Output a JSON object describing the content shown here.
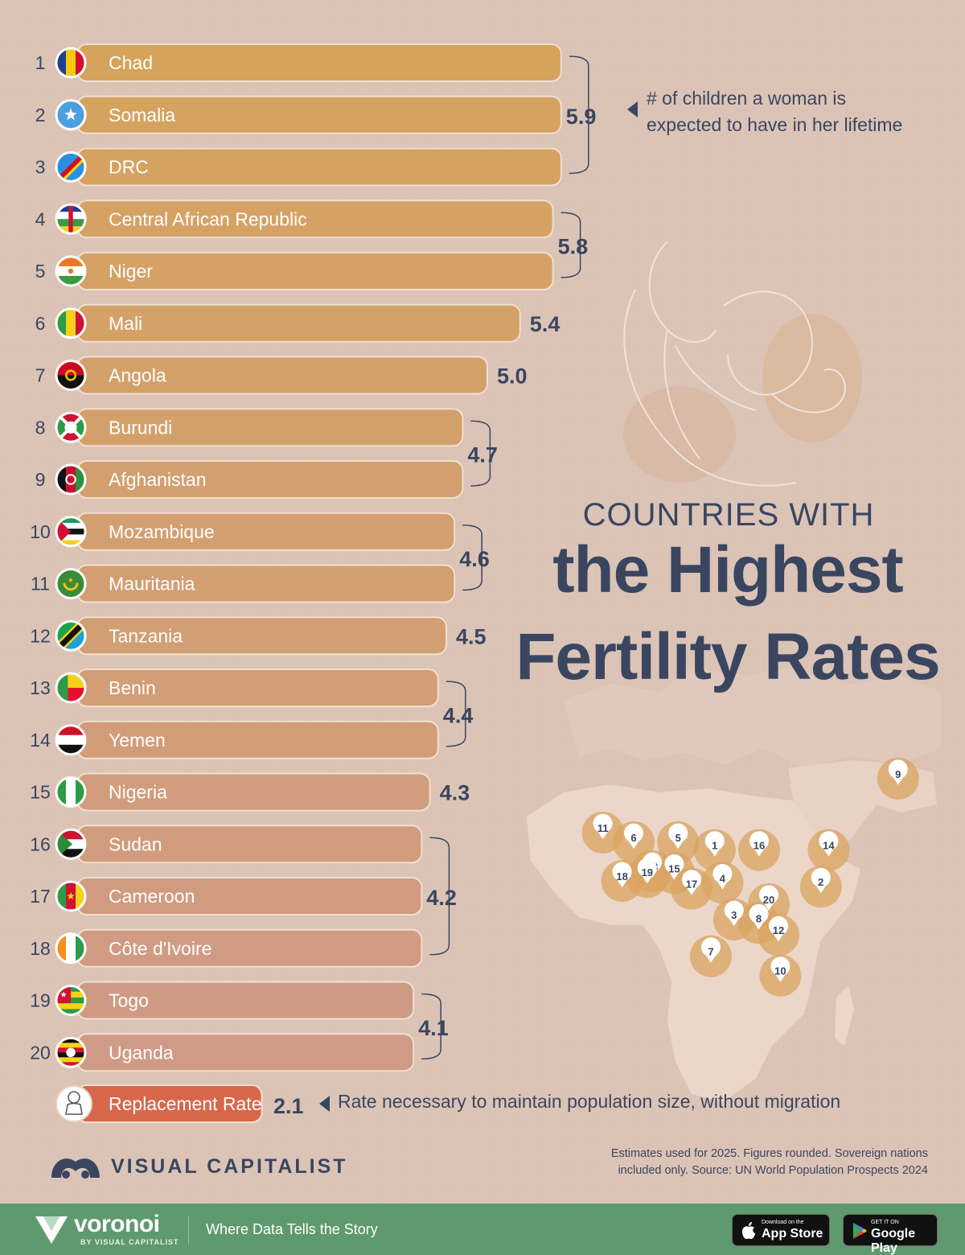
{
  "title": {
    "line1": "COUNTRIES WITH",
    "line2": "the Highest",
    "line3": "Fertility Rates"
  },
  "annotations": {
    "children_note_line1": "# of children a woman is",
    "children_note_line2": "expected to have in her lifetime",
    "replacement_note": "Rate necessary to maintain population size, without migration"
  },
  "chart_data": {
    "type": "bar",
    "orientation": "horizontal",
    "categories": [
      "Chad",
      "Somalia",
      "DRC",
      "Central African Republic",
      "Niger",
      "Mali",
      "Angola",
      "Burundi",
      "Afghanistan",
      "Mozambique",
      "Mauritania",
      "Tanzania",
      "Benin",
      "Yemen",
      "Nigeria",
      "Sudan",
      "Cameroon",
      "Côte d'Ivoire",
      "Togo",
      "Uganda"
    ],
    "ranks": [
      1,
      2,
      3,
      4,
      5,
      6,
      7,
      8,
      9,
      10,
      11,
      12,
      13,
      14,
      15,
      16,
      17,
      18,
      19,
      20
    ],
    "values": [
      5.9,
      5.9,
      5.9,
      5.8,
      5.8,
      5.4,
      5.0,
      4.7,
      4.7,
      4.6,
      4.6,
      4.5,
      4.4,
      4.4,
      4.3,
      4.2,
      4.2,
      4.2,
      4.1,
      4.1
    ],
    "value_groups": [
      {
        "label": "5.9",
        "value": 5.9,
        "from": 0,
        "to": 2
      },
      {
        "label": "5.8",
        "value": 5.8,
        "from": 3,
        "to": 4
      },
      {
        "label": "5.4",
        "value": 5.4,
        "from": 5,
        "to": 5
      },
      {
        "label": "5.0",
        "value": 5.0,
        "from": 6,
        "to": 6
      },
      {
        "label": "4.7",
        "value": 4.7,
        "from": 7,
        "to": 8
      },
      {
        "label": "4.6",
        "value": 4.6,
        "from": 9,
        "to": 10
      },
      {
        "label": "4.5",
        "value": 4.5,
        "from": 11,
        "to": 11
      },
      {
        "label": "4.4",
        "value": 4.4,
        "from": 12,
        "to": 13
      },
      {
        "label": "4.3",
        "value": 4.3,
        "from": 14,
        "to": 14
      },
      {
        "label": "4.2",
        "value": 4.2,
        "from": 15,
        "to": 17
      },
      {
        "label": "4.1",
        "value": 4.1,
        "from": 18,
        "to": 19
      }
    ],
    "reference": {
      "label": "Replacement Rate",
      "value": 2.1,
      "value_label": "2.1"
    },
    "map_markers": [
      {
        "rank": 1,
        "lon": 18.5,
        "lat": 15.5
      },
      {
        "rank": 2,
        "lon": 46.0,
        "lat": 6.0
      },
      {
        "rank": 3,
        "lon": 23.5,
        "lat": -2.5
      },
      {
        "rank": 4,
        "lon": 20.5,
        "lat": 7.0
      },
      {
        "rank": 5,
        "lon": 9.0,
        "lat": 17.5
      },
      {
        "rank": 6,
        "lon": -2.5,
        "lat": 17.5
      },
      {
        "rank": 7,
        "lon": 17.5,
        "lat": -12.0
      },
      {
        "rank": 8,
        "lon": 29.9,
        "lat": -3.4
      },
      {
        "rank": 9,
        "lon": 66.0,
        "lat": 34.0
      },
      {
        "rank": 10,
        "lon": 35.5,
        "lat": -17.0
      },
      {
        "rank": 11,
        "lon": -10.5,
        "lat": 20.0
      },
      {
        "rank": 12,
        "lon": 35.0,
        "lat": -6.5
      },
      {
        "rank": 13,
        "lon": 2.3,
        "lat": 10.0
      },
      {
        "rank": 14,
        "lon": 48.0,
        "lat": 15.5
      },
      {
        "rank": 15,
        "lon": 8.0,
        "lat": 9.5
      },
      {
        "rank": 16,
        "lon": 30.0,
        "lat": 15.5
      },
      {
        "rank": 17,
        "lon": 12.5,
        "lat": 5.5
      },
      {
        "rank": 18,
        "lon": -5.5,
        "lat": 7.5
      },
      {
        "rank": 19,
        "lon": 1.0,
        "lat": 8.5
      },
      {
        "rank": 20,
        "lon": 32.5,
        "lat": 1.5
      }
    ]
  },
  "colors": {
    "background": "#dbc4b6",
    "bar_top": "#d6a35c",
    "bar_bottom": "#cf9a86",
    "replacement_bar": "#d8674a",
    "text_dark": "#3a4660",
    "map_land": "#ead4c8",
    "map_highlight": "#d9a460",
    "footer": "#5f9a6e"
  },
  "source": {
    "line1": "Estimates used for 2025. Figures rounded. Sovereign nations",
    "line2": "included only. Source: UN World Population Prospects 2024"
  },
  "brand": {
    "name": "VISUAL CAPITALIST",
    "voronoi": "voronoi",
    "voronoi_sub": "BY VISUAL CAPITALIST",
    "tagline": "Where Data Tells the Story",
    "app_store_small": "Download on the",
    "app_store": "App Store",
    "google_play_small": "GET IT ON",
    "google_play": "Google Play"
  }
}
